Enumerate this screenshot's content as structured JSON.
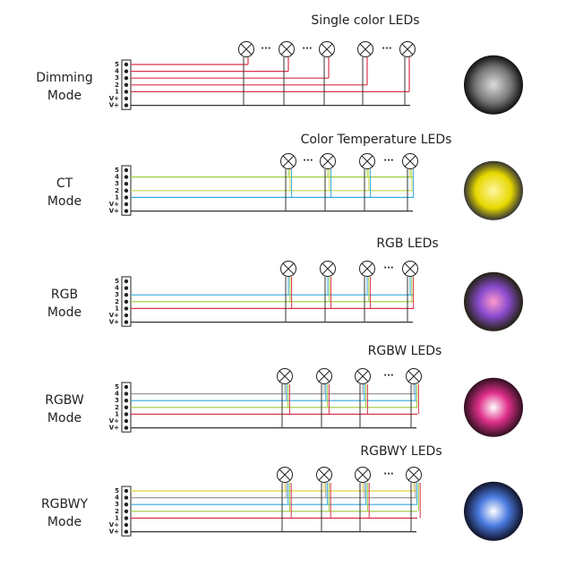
{
  "rows": [
    {
      "mode": [
        "Dimming",
        "Mode"
      ],
      "title": "Single color LEDs",
      "terminals": [
        "5",
        "4",
        "3",
        "2",
        "1",
        "V+",
        "V+"
      ]
    },
    {
      "mode": [
        "CT",
        "Mode"
      ],
      "title": "Color Temperature LEDs",
      "terminals": [
        "5",
        "4",
        "3",
        "2",
        "1",
        "V+",
        "V+"
      ]
    },
    {
      "mode": [
        "RGB",
        "Mode"
      ],
      "title": "RGB LEDs",
      "terminals": [
        "5",
        "4",
        "3",
        "2",
        "1",
        "V+",
        "V+"
      ]
    },
    {
      "mode": [
        "RGBW",
        "Mode"
      ],
      "title": "RGBW LEDs",
      "terminals": [
        "5",
        "4",
        "3",
        "2",
        "1",
        "V+",
        "V+"
      ]
    },
    {
      "mode": [
        "RGBWY",
        "Mode"
      ],
      "title": "RGBWY LEDs",
      "terminals": [
        "5",
        "4",
        "3",
        "2",
        "1",
        "V+",
        "V+"
      ]
    }
  ],
  "ellipsis": "···"
}
